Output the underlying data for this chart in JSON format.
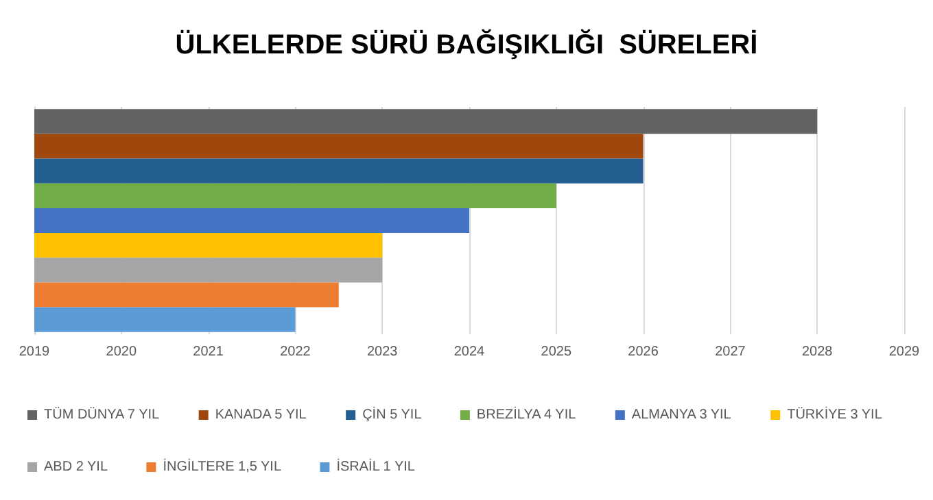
{
  "chart_data": {
    "type": "bar",
    "title": "ÜLKELERDE SÜRÜ BAĞIŞIKLIĞI  SÜRELERİ",
    "orientation": "horizontal",
    "categories": [
      null
    ],
    "series": [
      {
        "name": "TÜM DÜNYA 7 YIL",
        "color": "#636363",
        "values": [
          2028
        ]
      },
      {
        "name": "KANADA 5 YIL",
        "color": "#9e480e",
        "values": [
          2026
        ]
      },
      {
        "name": "ÇİN 5 YIL",
        "color": "#255e91",
        "values": [
          2026
        ]
      },
      {
        "name": "BREZİLYA 4 YIL",
        "color": "#70ad47",
        "values": [
          2025
        ]
      },
      {
        "name": "ALMANYA 3 YIL",
        "color": "#4472c4",
        "values": [
          2024
        ]
      },
      {
        "name": "TÜRKİYE 3 YIL",
        "color": "#ffc000",
        "values": [
          2023
        ]
      },
      {
        "name": "ABD 2 YIL",
        "color": "#a5a5a5",
        "values": [
          2023
        ]
      },
      {
        "name": "İNGİLTERE 1,5 YIL",
        "color": "#ed7d31",
        "values": [
          2022.5
        ]
      },
      {
        "name": "İSRAİL 1 YIL",
        "color": "#5b9bd5",
        "values": [
          2022
        ]
      }
    ],
    "xlim": [
      2019,
      2029
    ],
    "xticks": [
      2019,
      2020,
      2021,
      2022,
      2023,
      2024,
      2025,
      2026,
      2027,
      2028,
      2029
    ],
    "grid": "x",
    "legend": "bottom"
  }
}
